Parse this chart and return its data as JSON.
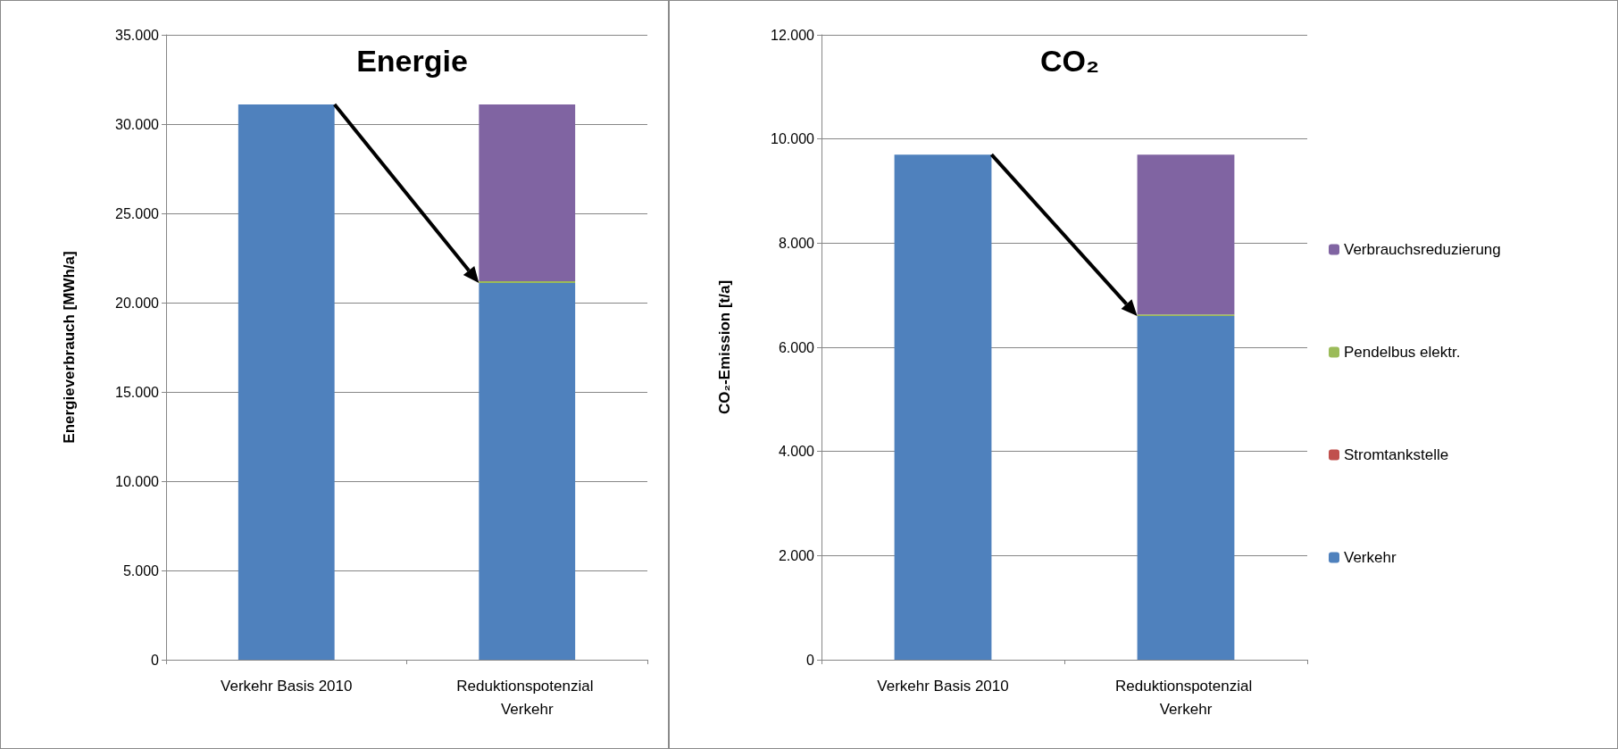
{
  "chart_data": [
    {
      "type": "bar",
      "title": "Energie",
      "ylabel": "Energieverbrauch [MWh/a]",
      "categories": [
        "Verkehr Basis 2010",
        "Reduktionspotenzial Verkehr"
      ],
      "stacked": true,
      "grid": "y",
      "legend": false,
      "ylim": [
        0,
        35000
      ],
      "yticks": [
        {
          "value": 0,
          "label": "0"
        },
        {
          "value": 5000,
          "label": "5.000"
        },
        {
          "value": 10000,
          "label": "10.000"
        },
        {
          "value": 15000,
          "label": "15.000"
        },
        {
          "value": 20000,
          "label": "20.000"
        },
        {
          "value": 25000,
          "label": "25.000"
        },
        {
          "value": 30000,
          "label": "30.000"
        },
        {
          "value": 35000,
          "label": "35.000"
        }
      ],
      "series": [
        {
          "color": "#4f81bd",
          "values": [
            31100,
            21100
          ]
        },
        {
          "color": "#c0504d",
          "values": [
            null,
            0
          ]
        },
        {
          "color": "#9bbb59",
          "values": [
            null,
            100
          ]
        },
        {
          "color": "#8064a2",
          "values": [
            null,
            9900
          ]
        }
      ]
    },
    {
      "type": "bar",
      "title": "CO₂",
      "ylabel": "CO₂-Emission [t/a]",
      "categories": [
        "Verkehr Basis 2010",
        "Reduktionspotenzial Verkehr"
      ],
      "stacked": true,
      "grid": "y",
      "legend": "right",
      "ylim": [
        0,
        12000
      ],
      "yticks": [
        {
          "value": 0,
          "label": "0"
        },
        {
          "value": 2000,
          "label": "2.000"
        },
        {
          "value": 4000,
          "label": "4.000"
        },
        {
          "value": 6000,
          "label": "6.000"
        },
        {
          "value": 8000,
          "label": "8.000"
        },
        {
          "value": 10000,
          "label": "10.000"
        },
        {
          "value": 12000,
          "label": "12.000"
        }
      ],
      "series": [
        {
          "name": "Verkehr",
          "color": "#4f81bd",
          "values": [
            9700,
            6600
          ]
        },
        {
          "name": "Stromtankstelle",
          "color": "#c0504d",
          "values": [
            null,
            0
          ]
        },
        {
          "name": "Pendelbus elektr.",
          "color": "#9bbb59",
          "values": [
            null,
            30
          ]
        },
        {
          "name": "Verbrauchsreduzierung",
          "color": "#8064a2",
          "values": [
            null,
            3070
          ]
        }
      ]
    }
  ]
}
